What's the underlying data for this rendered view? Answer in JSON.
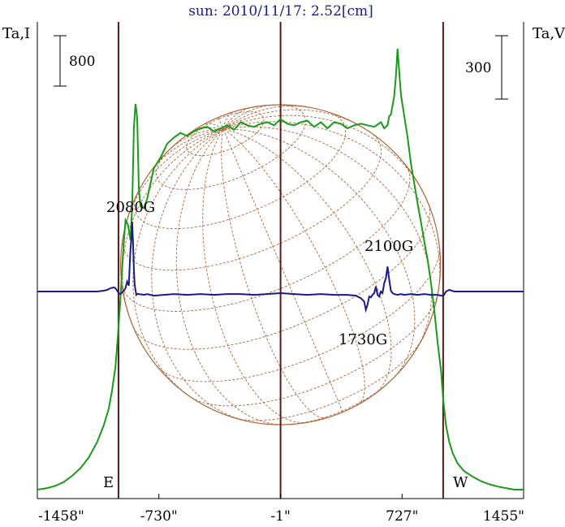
{
  "chart_data": {
    "type": "line",
    "title": "sun: 2010/11/17: 2.52[cm]",
    "y_left_label": "Ta,I",
    "y_right_label": "Ta,V",
    "scale_bar_left": "800",
    "scale_bar_right": "300",
    "xlim": [
      -1458,
      1455
    ],
    "x_tick_labels": [
      "-1458\"",
      "-730\"",
      "-1\"",
      "727\"",
      "1455\""
    ],
    "x_ticks": [
      -1458,
      -730,
      -1,
      727,
      1455
    ],
    "limb_markers": [
      -972,
      973
    ],
    "limb_labels": [
      "E",
      "W"
    ],
    "grid": false,
    "series": [
      {
        "color": "#1a9a1a",
        "x": [
          -1458,
          -1400,
          -1350,
          -1300,
          -1250,
          -1200,
          -1150,
          -1100,
          -1060,
          -1030,
          -1010,
          -990,
          -975,
          -960,
          -945,
          -930,
          -915,
          -900,
          -890,
          -880,
          -870,
          -860,
          -850,
          -840,
          -820,
          -800,
          -760,
          -720,
          -680,
          -640,
          -600,
          -560,
          -520,
          -480,
          -440,
          -400,
          -360,
          -320,
          -280,
          -240,
          -200,
          -160,
          -120,
          -80,
          -40,
          -1,
          40,
          80,
          120,
          160,
          200,
          240,
          280,
          320,
          360,
          400,
          440,
          480,
          520,
          560,
          600,
          620,
          640,
          650,
          660,
          670,
          680,
          690,
          700,
          720,
          740,
          760,
          780,
          800,
          820,
          840,
          860,
          880,
          900,
          920,
          940,
          960,
          975,
          990,
          1010,
          1030,
          1060,
          1100,
          1150,
          1200,
          1250,
          1300,
          1350,
          1400,
          1455
        ],
        "y": [
          0,
          10,
          25,
          50,
          90,
          140,
          210,
          310,
          420,
          530,
          650,
          800,
          1010,
          1250,
          1540,
          1760,
          1730,
          1630,
          1840,
          2360,
          2520,
          2430,
          1970,
          1850,
          1840,
          1900,
          2100,
          2170,
          2260,
          2300,
          2330,
          2310,
          2340,
          2360,
          2370,
          2340,
          2360,
          2380,
          2350,
          2400,
          2380,
          2370,
          2390,
          2400,
          2380,
          2420,
          2390,
          2380,
          2400,
          2410,
          2370,
          2400,
          2360,
          2400,
          2390,
          2360,
          2380,
          2390,
          2380,
          2370,
          2400,
          2360,
          2380,
          2440,
          2450,
          2510,
          2570,
          2700,
          2880,
          2580,
          2440,
          2300,
          2130,
          2000,
          1870,
          1750,
          1620,
          1500,
          1350,
          1170,
          960,
          780,
          570,
          420,
          310,
          240,
          170,
          120,
          85,
          55,
          35,
          20,
          10,
          0,
          0
        ]
      },
      {
        "color": "#1a1a8c",
        "x": [
          -1458,
          -1100,
          -1060,
          -1040,
          -1020,
          -1000,
          -990,
          -980,
          -970,
          -960,
          -950,
          -940,
          -930,
          -920,
          -910,
          -905,
          -900,
          -895,
          -890,
          -885,
          -880,
          -875,
          -870,
          -865,
          -860,
          -850,
          -820,
          -800,
          -760,
          -700,
          -640,
          -560,
          -480,
          -400,
          -320,
          -240,
          -160,
          -80,
          -1,
          80,
          160,
          240,
          320,
          400,
          450,
          480,
          500,
          510,
          520,
          530,
          540,
          550,
          560,
          570,
          580,
          590,
          600,
          610,
          620,
          630,
          640,
          650,
          660,
          670,
          680,
          700,
          720,
          740,
          780,
          820,
          860,
          900,
          940,
          960,
          975,
          990,
          1010,
          1040,
          1100,
          1455
        ],
        "y": [
          0,
          0,
          5,
          10,
          20,
          25,
          20,
          5,
          -10,
          -15,
          -5,
          5,
          20,
          60,
          35,
          150,
          250,
          320,
          420,
          300,
          140,
          40,
          10,
          -20,
          -15,
          -15,
          -20,
          -15,
          -25,
          -20,
          -15,
          -20,
          -15,
          -20,
          -15,
          -15,
          -20,
          -15,
          -10,
          -15,
          -20,
          -15,
          -20,
          -20,
          -25,
          -40,
          -60,
          -110,
          -80,
          -30,
          -35,
          -20,
          -10,
          30,
          -20,
          -30,
          0,
          -10,
          50,
          80,
          150,
          70,
          5,
          -10,
          -15,
          -20,
          -15,
          -20,
          -15,
          -20,
          -15,
          -20,
          -20,
          -25,
          -25,
          0,
          10,
          0,
          0,
          0
        ]
      }
    ],
    "annotations": [
      {
        "text": "2080G"
      },
      {
        "text": "2100G"
      },
      {
        "text": "1730G"
      }
    ]
  }
}
